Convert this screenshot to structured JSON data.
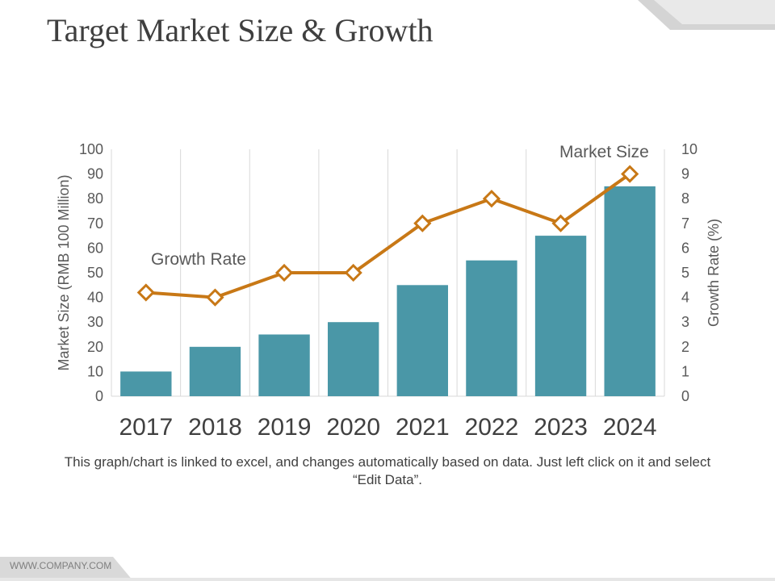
{
  "title": "Target Market Size & Growth",
  "note": "This graph/chart is linked to excel, and changes automatically based on data. Just left click on it and select “Edit Data”.",
  "footer": "WWW.COMPANY.COM",
  "colors": {
    "bar": "#4a97a7",
    "line": "#c87816",
    "grid": "#d9d9d9",
    "marker_fill": "#ffffff"
  },
  "chart_data": {
    "type": "bar",
    "categories": [
      "2017",
      "2018",
      "2019",
      "2020",
      "2021",
      "2022",
      "2023",
      "2024"
    ],
    "series": [
      {
        "name": "Market Size",
        "type": "bar",
        "axis": "left",
        "values": [
          10,
          20,
          25,
          30,
          45,
          55,
          65,
          85
        ]
      },
      {
        "name": "Growth Rate",
        "type": "line",
        "axis": "right",
        "values": [
          4.2,
          4.0,
          5.0,
          5.0,
          7.0,
          8.0,
          7.0,
          9.0
        ]
      }
    ],
    "ylabel": "Market Size (RMB 100 Million)",
    "y2label": "Growth Rate (%)",
    "ylim": [
      0,
      100
    ],
    "y2lim": [
      0,
      10
    ],
    "yticks": [
      "0",
      "10",
      "20",
      "30",
      "40",
      "50",
      "60",
      "70",
      "80",
      "90",
      "100"
    ],
    "y2ticks": [
      "0",
      "1",
      "2",
      "3",
      "4",
      "5",
      "6",
      "7",
      "8",
      "9",
      "10"
    ],
    "annotations": {
      "market_size": "Market Size",
      "growth_rate": "Growth Rate"
    },
    "grid": true
  }
}
